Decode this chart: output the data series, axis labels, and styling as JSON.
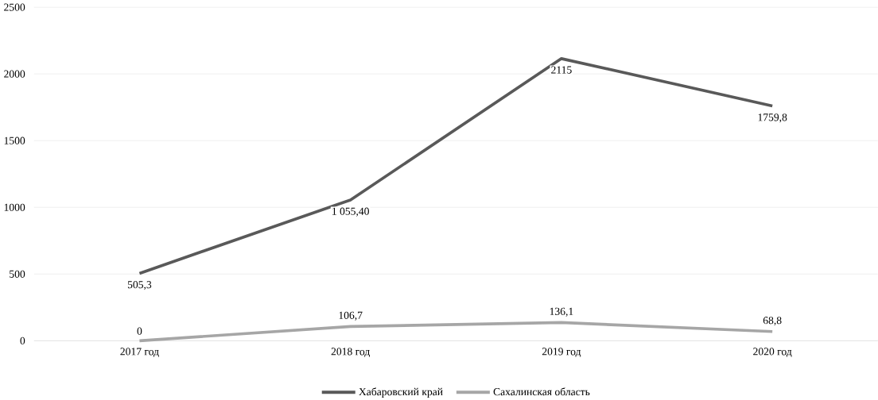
{
  "chart_data": {
    "type": "line",
    "categories": [
      "2017 год",
      "2018 год",
      "2019 год",
      "2020 год"
    ],
    "series": [
      {
        "name": "Хабаровский край",
        "color": "#595959",
        "values": [
          505.3,
          1055.4,
          2115,
          1759.8
        ],
        "value_labels": [
          "505,3",
          "1 055,40",
          "2115",
          "1759,8"
        ]
      },
      {
        "name": "Сахалинская область",
        "color": "#a6a6a6",
        "values": [
          0,
          106.7,
          136.1,
          68.8
        ],
        "value_labels": [
          "0",
          "106,7",
          "136,1",
          "68,8"
        ]
      }
    ],
    "ylim": [
      0,
      2500
    ],
    "yticks": [
      0,
      500,
      1000,
      1500,
      2000,
      2500
    ],
    "grid": "y",
    "legend": "bottom",
    "marker": "none",
    "line_style": "solid"
  }
}
